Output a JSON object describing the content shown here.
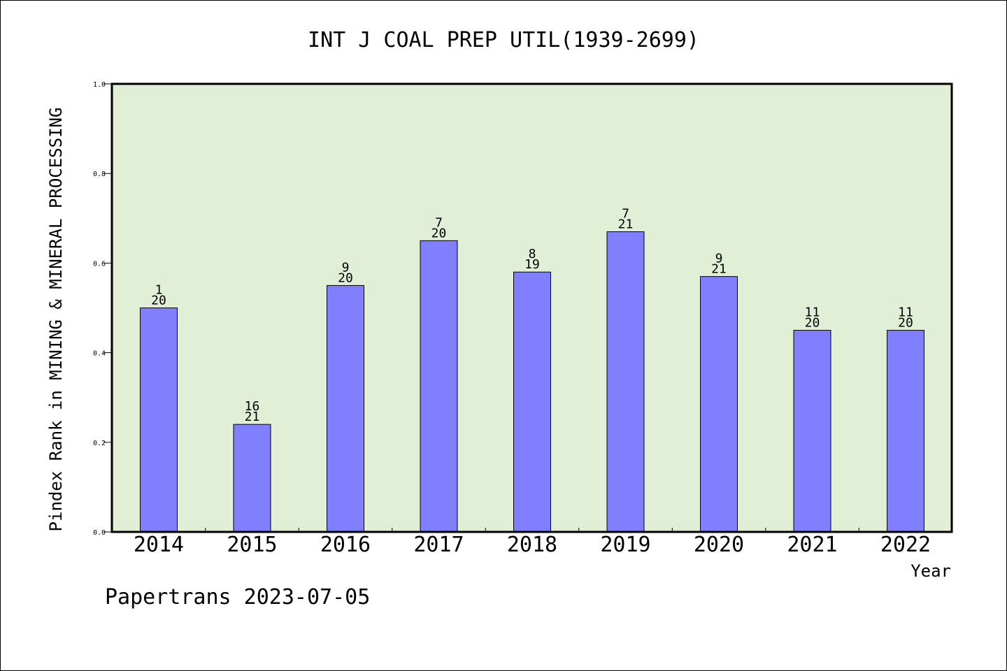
{
  "chart_data": {
    "type": "bar",
    "title": "INT J COAL PREP UTIL(1939-2699)",
    "xlabel": "Year",
    "ylabel": "Pindex Rank in MINING & MINERAL PROCESSING",
    "ylim": [
      0,
      1.0
    ],
    "yticks": [
      "0.0",
      "0.2",
      "0.4",
      "0.6",
      "0.8",
      "1.0"
    ],
    "categories": [
      "2014",
      "2015",
      "2016",
      "2017",
      "2018",
      "2019",
      "2020",
      "2021",
      "2022"
    ],
    "values": [
      0.5,
      0.24,
      0.55,
      0.65,
      0.58,
      0.67,
      0.57,
      0.45,
      0.45
    ],
    "rank_labels": [
      {
        "rank": "1",
        "total": "20"
      },
      {
        "rank": "16",
        "total": "21"
      },
      {
        "rank": "9",
        "total": "20"
      },
      {
        "rank": "7",
        "total": "20"
      },
      {
        "rank": "8",
        "total": "19"
      },
      {
        "rank": "7",
        "total": "21"
      },
      {
        "rank": "9",
        "total": "21"
      },
      {
        "rank": "11",
        "total": "20"
      },
      {
        "rank": "11",
        "total": "20"
      }
    ],
    "grid": false,
    "colors": {
      "bar": "#8080ff",
      "plot_background": "#e2efd7"
    }
  },
  "footer": "Papertrans 2023-07-05"
}
